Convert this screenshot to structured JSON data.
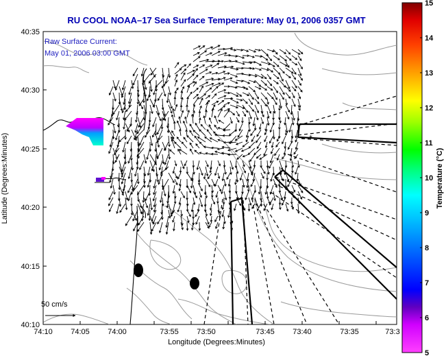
{
  "title": "RU COOL  NOAA–17  Sea Surface Temperature:  May 01, 2006 0357 GMT",
  "legend": {
    "line1": "Raw Surface Current:",
    "line2": "May 01, 2006 03:00 GMT"
  },
  "scale_label": "50 cm/s",
  "x_axis": {
    "label": "Longitude (Degrees:Minutes)",
    "ticks": [
      "74:10",
      "74:05",
      "74:00",
      "73:55",
      "73:50",
      "73:45",
      "73:40",
      "73:35",
      "73:3"
    ]
  },
  "y_axis": {
    "label": "Latitude (Degrees:Minutes)",
    "ticks": [
      "40:35",
      "40:30",
      "40:25",
      "40:20",
      "40:15",
      "40:10"
    ]
  },
  "colorbar": {
    "label": "Temperature (°C)",
    "ticks": [
      "15",
      "14",
      "13",
      "12",
      "11",
      "10",
      "9",
      "8",
      "7",
      "6",
      "5"
    ],
    "range": [
      5,
      15
    ],
    "colors": [
      "#ff00ff",
      "#8000ff",
      "#0000ff",
      "#0080ff",
      "#00ffff",
      "#00ff80",
      "#00ff00",
      "#80ff00",
      "#ffff00",
      "#ffb000",
      "#ff6000",
      "#ff0000",
      "#800000"
    ]
  },
  "map": {
    "land_label_color": "#888888",
    "vector_color": "#000000",
    "coast_color": "#000000",
    "contour_color": "#999999"
  }
}
